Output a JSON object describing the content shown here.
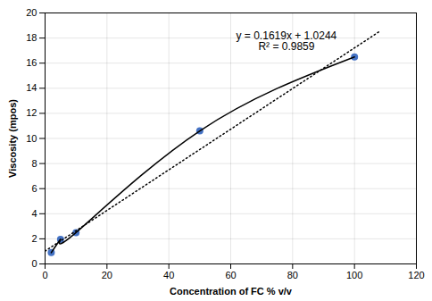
{
  "chart_data": {
    "type": "scatter",
    "xlabel": "Concentration of FC % v/v",
    "ylabel": "Viscosity (mpos)",
    "series": [
      {
        "type": "scatter",
        "color": "#4472C4",
        "x": [
          2,
          5,
          10,
          50,
          100
        ],
        "values": [
          0.9,
          1.95,
          2.5,
          10.6,
          16.5
        ]
      },
      {
        "type": "line",
        "line_style": "solid",
        "color": "#000000",
        "x": [
          2,
          5,
          10,
          50,
          100
        ],
        "values": [
          0.9,
          1.95,
          2.5,
          10.6,
          16.5
        ]
      },
      {
        "type": "line",
        "line_style": "dotted",
        "color": "#000000",
        "x": [
          0,
          108
        ],
        "values": [
          1.0244,
          18.5096
        ]
      }
    ],
    "annotations": [
      {
        "text": "y = 0.1619x + 1.0244\nR² = 0.9859",
        "x": 78,
        "y": 18.5
      }
    ],
    "xlim": [
      0,
      120
    ],
    "ylim": [
      0,
      20
    ],
    "xticks": [
      0,
      20,
      40,
      60,
      80,
      100,
      120
    ],
    "yticks": [
      0,
      2,
      4,
      6,
      8,
      10,
      12,
      14,
      16,
      18,
      20
    ],
    "grid": true
  }
}
